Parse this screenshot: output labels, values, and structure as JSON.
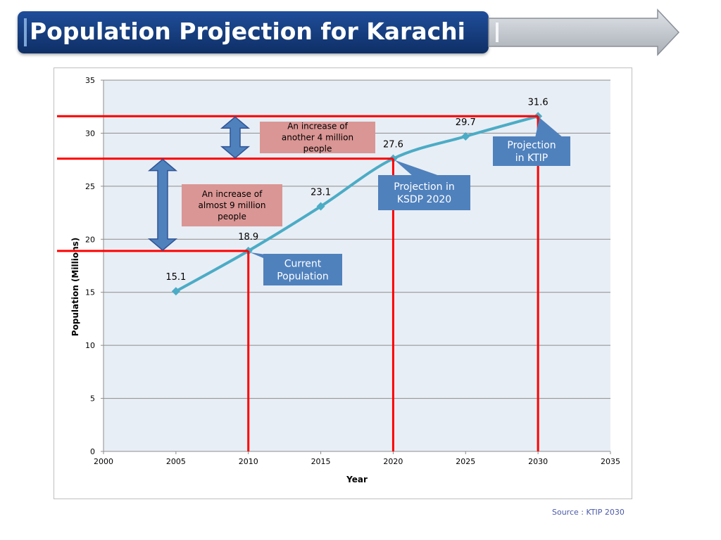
{
  "header": {
    "title": "Population Projection for Karachi"
  },
  "source": "Source : KTIP 2030",
  "annotations": {
    "increase_9m": [
      "An increase of",
      "almost 9 million",
      "people"
    ],
    "increase_4m": [
      "An increase of",
      "another 4 million",
      "people"
    ],
    "current": [
      "Current",
      "Population"
    ],
    "ksdp": [
      "Projection in",
      "KSDP 2020"
    ],
    "ktip": [
      "Projection",
      "in KTIP"
    ]
  },
  "colors": {
    "line": "#4bacc6",
    "reference": "#ff0000",
    "plot_bg": "#e8eef5",
    "callout_blue": "#4f81bd",
    "callout_pink": "#da9694",
    "double_arrow": "#4f81bd"
  },
  "chart_data": {
    "type": "line",
    "xlabel": "Year",
    "ylabel": "Population (Millions)",
    "xlim": [
      2000,
      2035
    ],
    "ylim": [
      0,
      35
    ],
    "x_ticks": [
      2000,
      2005,
      2010,
      2015,
      2020,
      2025,
      2030,
      2035
    ],
    "y_ticks": [
      0,
      5,
      10,
      15,
      20,
      25,
      30,
      35
    ],
    "grid": true,
    "series": [
      {
        "x": [
          2005,
          2010,
          2015,
          2020,
          2025,
          2030
        ],
        "values": [
          15.1,
          18.9,
          23.1,
          27.6,
          29.7,
          31.6
        ],
        "labels": [
          "15.1",
          "18.9",
          "23.1",
          "27.6",
          "29.7",
          "31.6"
        ]
      }
    ]
  }
}
